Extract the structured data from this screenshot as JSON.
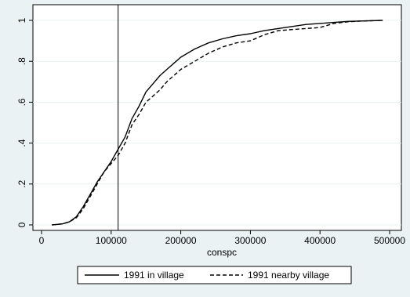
{
  "chart_data": {
    "type": "line",
    "title": "",
    "xlabel": "conspc",
    "ylabel": "",
    "xlim": [
      0,
      500000
    ],
    "ylim": [
      0,
      1
    ],
    "x_ticks": [
      0,
      100000,
      200000,
      300000,
      400000,
      500000
    ],
    "x_tick_labels": [
      "0",
      "100000",
      "200000",
      "300000",
      "400000",
      "500000"
    ],
    "y_ticks": [
      0,
      0.2,
      0.4,
      0.6,
      0.8,
      1
    ],
    "y_tick_labels": [
      "0",
      ".2",
      ".4",
      ".6",
      ".8",
      "1"
    ],
    "grid": "horizontal",
    "legend_position": "bottom",
    "reference_line_x": 110000,
    "series": [
      {
        "name": "1991 in village",
        "style": "solid",
        "color": "#000000",
        "x": [
          15000,
          30000,
          40000,
          50000,
          60000,
          70000,
          80000,
          90000,
          100000,
          110000,
          120000,
          130000,
          140000,
          150000,
          160000,
          170000,
          180000,
          190000,
          200000,
          220000,
          240000,
          260000,
          280000,
          300000,
          320000,
          340000,
          360000,
          380000,
          400000,
          420000,
          440000,
          460000,
          490000
        ],
        "y": [
          0,
          0.005,
          0.015,
          0.04,
          0.09,
          0.15,
          0.21,
          0.26,
          0.31,
          0.37,
          0.43,
          0.52,
          0.58,
          0.65,
          0.69,
          0.73,
          0.76,
          0.79,
          0.82,
          0.86,
          0.89,
          0.91,
          0.925,
          0.935,
          0.95,
          0.96,
          0.97,
          0.98,
          0.985,
          0.99,
          0.995,
          0.997,
          1
        ]
      },
      {
        "name": "1991 nearby village",
        "style": "dashed",
        "color": "#000000",
        "x": [
          15000,
          30000,
          40000,
          50000,
          60000,
          70000,
          80000,
          90000,
          100000,
          110000,
          120000,
          130000,
          140000,
          150000,
          160000,
          170000,
          180000,
          190000,
          200000,
          220000,
          240000,
          260000,
          280000,
          300000,
          320000,
          340000,
          360000,
          380000,
          400000,
          420000,
          440000,
          460000,
          490000
        ],
        "y": [
          0,
          0.005,
          0.015,
          0.035,
          0.08,
          0.14,
          0.2,
          0.26,
          0.3,
          0.34,
          0.4,
          0.49,
          0.54,
          0.6,
          0.63,
          0.66,
          0.7,
          0.73,
          0.76,
          0.8,
          0.84,
          0.87,
          0.89,
          0.9,
          0.93,
          0.95,
          0.955,
          0.96,
          0.965,
          0.985,
          0.993,
          0.997,
          1
        ]
      }
    ]
  }
}
